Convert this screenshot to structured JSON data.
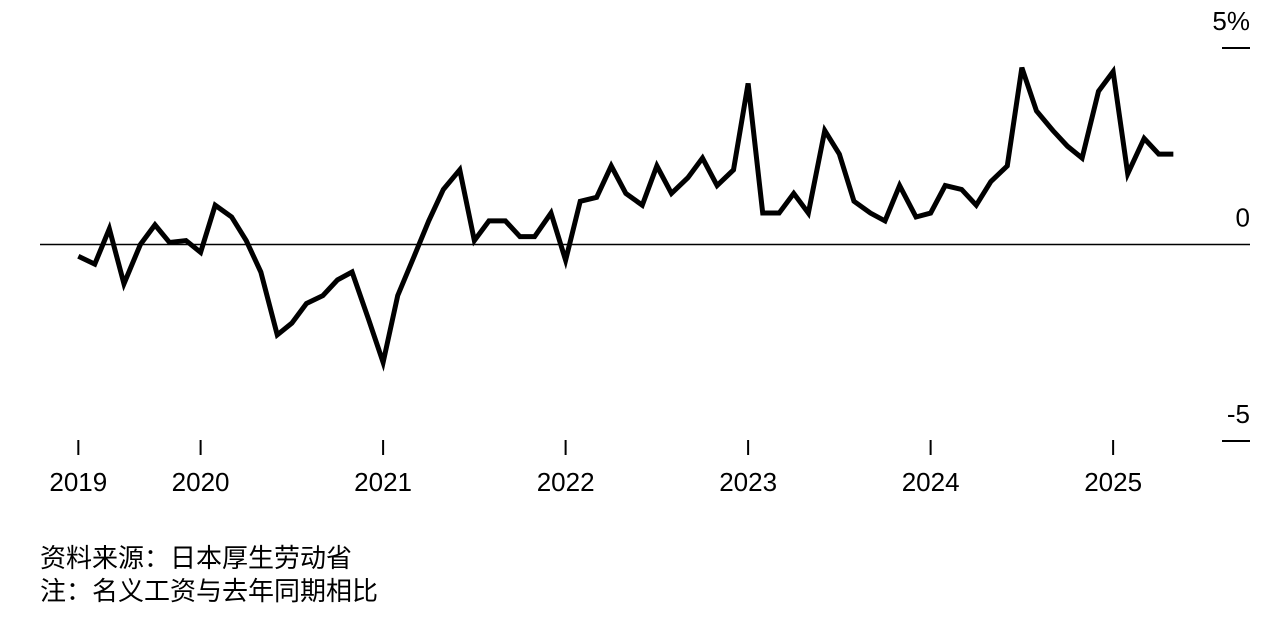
{
  "chart_data": {
    "type": "line",
    "x": [
      2019.33,
      2019.42,
      2019.5,
      2019.58,
      2019.67,
      2019.75,
      2019.83,
      2019.92,
      2020.0,
      2020.08,
      2020.17,
      2020.25,
      2020.33,
      2020.42,
      2020.5,
      2020.58,
      2020.67,
      2020.75,
      2020.83,
      2020.92,
      2021.0,
      2021.08,
      2021.17,
      2021.25,
      2021.33,
      2021.42,
      2021.5,
      2021.58,
      2021.67,
      2021.75,
      2021.83,
      2021.92,
      2022.0,
      2022.08,
      2022.17,
      2022.25,
      2022.33,
      2022.42,
      2022.5,
      2022.58,
      2022.67,
      2022.75,
      2022.83,
      2022.92,
      2023.0,
      2023.08,
      2023.17,
      2023.25,
      2023.33,
      2023.42,
      2023.5,
      2023.58,
      2023.67,
      2023.75,
      2023.83,
      2023.92,
      2024.0,
      2024.08,
      2024.17,
      2024.25,
      2024.33,
      2024.42,
      2024.5,
      2024.58,
      2024.67,
      2024.75,
      2024.83,
      2024.92,
      2025.0,
      2025.08,
      2025.17,
      2025.25,
      2025.33
    ],
    "series": [
      {
        "color": "#000000",
        "values": [
          -0.3,
          -0.5,
          0.4,
          -1.0,
          0.0,
          0.5,
          0.05,
          0.1,
          -0.2,
          1.0,
          0.7,
          0.1,
          -0.7,
          -2.3,
          -2.0,
          -1.5,
          -1.3,
          -0.9,
          -0.7,
          -1.9,
          -3.0,
          -1.3,
          -0.3,
          0.6,
          1.4,
          1.9,
          0.1,
          0.6,
          0.6,
          0.2,
          0.2,
          0.8,
          -0.4,
          1.1,
          1.2,
          2.0,
          1.3,
          1.0,
          2.0,
          1.3,
          1.7,
          2.2,
          1.5,
          1.9,
          4.1,
          0.8,
          0.8,
          1.3,
          0.8,
          2.9,
          2.3,
          1.1,
          0.8,
          0.6,
          1.5,
          0.7,
          0.8,
          1.5,
          1.4,
          1.0,
          1.6,
          2.0,
          4.5,
          3.4,
          2.9,
          2.5,
          2.2,
          3.9,
          4.4,
          1.8,
          2.7,
          2.3,
          2.3
        ]
      }
    ],
    "xlim": [
      2019.12,
      2025.75
    ],
    "xticks": [
      {
        "value": 2019.33,
        "label": "2019"
      },
      2020,
      2021,
      2022,
      2023,
      2024,
      2025
    ],
    "ylim": [
      -5,
      5
    ],
    "yticks": [
      -5,
      0,
      {
        "value": 5,
        "label": "5%"
      }
    ],
    "source": "资料来源：日本厚生劳动省",
    "note": "注：名义工资与去年同期相比"
  }
}
